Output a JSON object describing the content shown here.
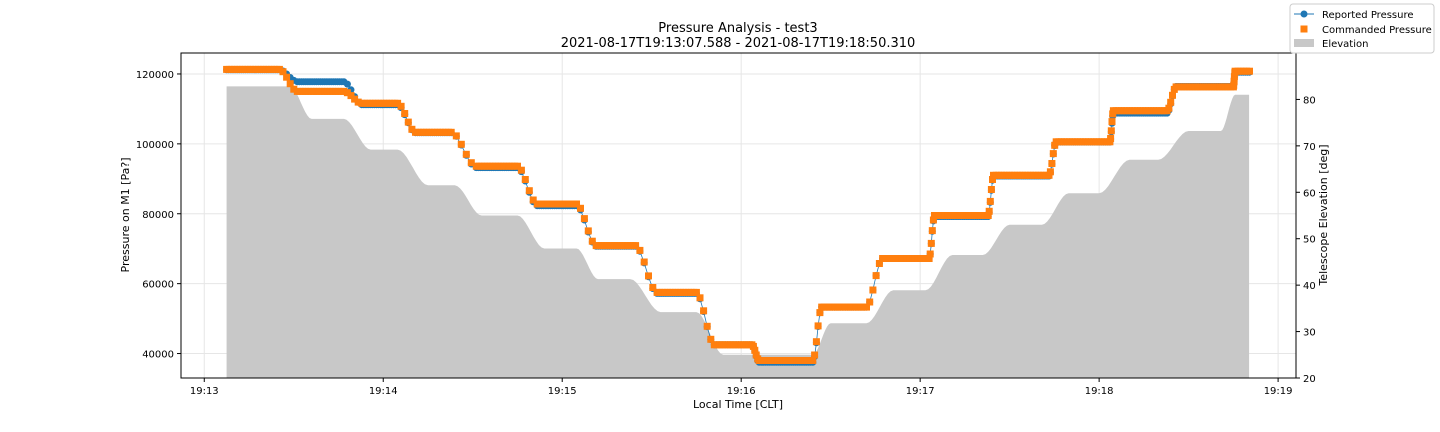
{
  "chart_data": {
    "type": "scatter",
    "title": "Pressure Analysis - test3",
    "subtitle": "2021-08-17T19:13:07.588 - 2021-08-17T19:18:50.310",
    "xlabel": "Local Time [CLT]",
    "ylabel_left": "Pressure on M1 [Pa?]",
    "ylabel_right": "Telescope Elevation [deg]",
    "x_ticks": [
      "19:13",
      "19:14",
      "19:15",
      "19:16",
      "19:17",
      "19:18",
      "19:19"
    ],
    "x_tick_minutes": [
      13,
      14,
      15,
      16,
      17,
      18,
      19
    ],
    "xlim_minutes": [
      12.87,
      19.1
    ],
    "ylim_left": [
      33000,
      126000
    ],
    "ylim_right": [
      20,
      90
    ],
    "y_left_ticks": [
      40000,
      60000,
      80000,
      100000,
      120000
    ],
    "y_left_tick_labels": [
      "40000",
      "60000",
      "80000",
      "100000",
      "120000"
    ],
    "y_right_ticks": [
      20,
      30,
      40,
      50,
      60,
      70,
      80
    ],
    "y_right_tick_labels": [
      "20",
      "30",
      "40",
      "50",
      "60",
      "70",
      "80"
    ],
    "grid": true,
    "legend_position": "top-right",
    "legend": [
      {
        "label": "Reported Pressure",
        "marker": "circle-line",
        "color": "#1f77b4"
      },
      {
        "label": "Commanded Pressure",
        "marker": "square",
        "color": "#ff7f0e"
      },
      {
        "label": "Elevation",
        "marker": "patch",
        "color": "#c8c8c8"
      }
    ],
    "colors": {
      "reported": "#1f77b4",
      "commanded": "#ff7f0e",
      "elevation": "#c8c8c8"
    },
    "x_range_minutes": [
      13.125,
      18.838
    ],
    "pressure_steps": [
      {
        "x0": 13.125,
        "x1": 13.42,
        "reported": 121200,
        "commanded": 121300
      },
      {
        "x0": 13.52,
        "x1": 13.78,
        "reported": 117800,
        "commanded": 115000
      },
      {
        "x0": 13.88,
        "x1": 14.08,
        "reported": 111200,
        "commanded": 111600
      },
      {
        "x0": 14.18,
        "x1": 14.38,
        "reported": 103200,
        "commanded": 103300
      },
      {
        "x0": 14.52,
        "x1": 14.75,
        "reported": 93200,
        "commanded": 93600
      },
      {
        "x0": 14.86,
        "x1": 15.08,
        "reported": 82300,
        "commanded": 82800
      },
      {
        "x0": 15.19,
        "x1": 15.41,
        "reported": 70700,
        "commanded": 70900
      },
      {
        "x0": 15.53,
        "x1": 15.75,
        "reported": 57200,
        "commanded": 57500
      },
      {
        "x0": 15.85,
        "x1": 16.06,
        "reported": 42500,
        "commanded": 42500
      },
      {
        "x0": 16.1,
        "x1": 16.4,
        "reported": 37500,
        "commanded": 38000
      },
      {
        "x0": 16.45,
        "x1": 16.7,
        "reported": 53300,
        "commanded": 53300
      },
      {
        "x0": 16.79,
        "x1": 17.05,
        "reported": 67200,
        "commanded": 67200
      },
      {
        "x0": 17.08,
        "x1": 17.38,
        "reported": 79200,
        "commanded": 79500
      },
      {
        "x0": 17.41,
        "x1": 17.72,
        "reported": 90800,
        "commanded": 91000
      },
      {
        "x0": 17.76,
        "x1": 18.06,
        "reported": 100500,
        "commanded": 100600
      },
      {
        "x0": 18.08,
        "x1": 18.38,
        "reported": 108800,
        "commanded": 109500
      },
      {
        "x0": 18.43,
        "x1": 18.75,
        "reported": 116400,
        "commanded": 116300
      },
      {
        "x0": 18.76,
        "x1": 18.84,
        "reported": 120500,
        "commanded": 120800
      }
    ],
    "elevation_steps": [
      {
        "x0": 13.125,
        "x1": 13.48,
        "value": 82.8
      },
      {
        "x0": 13.6,
        "x1": 13.78,
        "value": 75.8
      },
      {
        "x0": 13.93,
        "x1": 14.08,
        "value": 69.2
      },
      {
        "x0": 14.25,
        "x1": 14.4,
        "value": 61.5
      },
      {
        "x0": 14.55,
        "x1": 14.75,
        "value": 55.0
      },
      {
        "x0": 14.9,
        "x1": 15.08,
        "value": 47.9
      },
      {
        "x0": 15.2,
        "x1": 15.38,
        "value": 41.3
      },
      {
        "x0": 15.55,
        "x1": 15.75,
        "value": 34.2
      },
      {
        "x0": 15.9,
        "x1": 16.08,
        "value": 25.0
      },
      {
        "x0": 16.15,
        "x1": 16.4,
        "value": 25.0
      },
      {
        "x0": 16.5,
        "x1": 16.7,
        "value": 31.8
      },
      {
        "x0": 16.85,
        "x1": 17.03,
        "value": 38.9
      },
      {
        "x0": 17.18,
        "x1": 17.35,
        "value": 46.5
      },
      {
        "x0": 17.5,
        "x1": 17.68,
        "value": 53.0
      },
      {
        "x0": 17.83,
        "x1": 18.0,
        "value": 59.8
      },
      {
        "x0": 18.17,
        "x1": 18.33,
        "value": 67.0
      },
      {
        "x0": 18.5,
        "x1": 18.68,
        "value": 73.2
      },
      {
        "x0": 18.76,
        "x1": 18.838,
        "value": 81.0
      }
    ]
  }
}
